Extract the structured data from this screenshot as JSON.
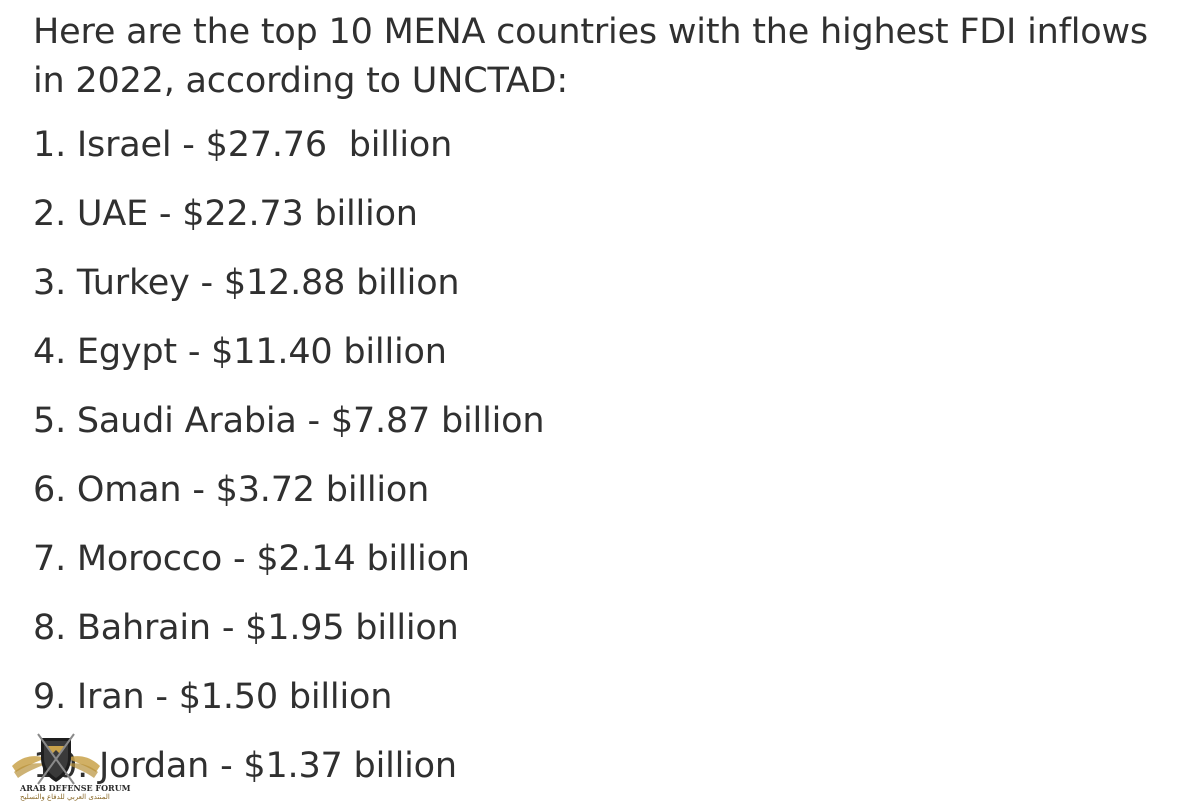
{
  "intro": "Here are the top 10 MENA countries with the highest FDI inflows in 2022, according to UNCTAD:",
  "items": [
    "1. Israel - $27.76  billion",
    "2. UAE - $22.73 billion",
    "3. Turkey - $12.88 billion",
    "4. Egypt - $11.40 billion",
    "5. Saudi Arabia - $7.87 billion",
    "6. Oman - $3.72 billion",
    "7. Morocco - $2.14 billion",
    "8. Bahrain - $1.95 billion",
    "9. Iran - $1.50 billion",
    "10. Jordan - $1.37 billion"
  ],
  "watermark": {
    "icon": "arab-defense-forum-logo-icon",
    "text_en": "ARAB DEFENSE FORUM",
    "text_ar": "المنتدى العربي للدفاع والتسليح",
    "accent": "#c9a24a"
  }
}
